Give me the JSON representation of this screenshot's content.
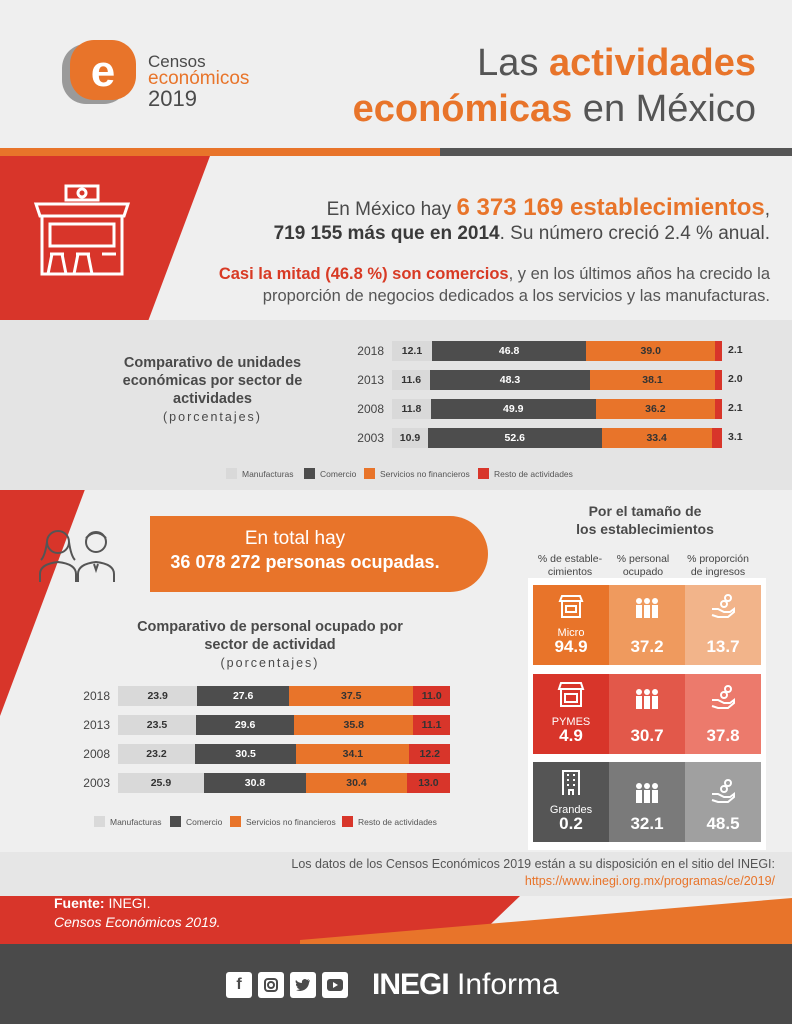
{
  "header": {
    "logo_line1": "Censos",
    "logo_line2": "económicos",
    "logo_line3": "2019",
    "title_pre": "Las ",
    "title_hl1": "actividades",
    "title_hl2": "económicas",
    "title_post": " en México"
  },
  "intro": {
    "p1_a": "En México hay ",
    "p1_big": "6 373 169 establecimientos",
    "p1_b": ",",
    "p1_bold": "719 155 más que en 2014",
    "p1_c": ". Su número creció 2.4 % anual.",
    "p2_hl": "Casi la mitad (46.8 %) son comercios",
    "p2_rest": ", y en los últimos años ha crecido la proporción de negocios dedicados a los servicios y las manufacturas."
  },
  "chart_data": [
    {
      "type": "bar",
      "title": "Comparativo de unidades económicas por sector de actividades",
      "subtitle": "(porcentajes)",
      "categories": [
        "2018",
        "2013",
        "2008",
        "2003"
      ],
      "series": [
        {
          "name": "Manufacturas",
          "color": "#d9d9d9",
          "values": [
            12.1,
            11.6,
            11.8,
            10.9
          ]
        },
        {
          "name": "Comercio",
          "color": "#4d4d4d",
          "values": [
            46.8,
            48.3,
            49.9,
            52.6
          ]
        },
        {
          "name": "Servicios no financieros",
          "color": "#e8742a",
          "values": [
            39.0,
            38.1,
            36.2,
            33.4
          ]
        },
        {
          "name": "Resto de actividades",
          "color": "#d8352a",
          "values": [
            2.1,
            2.0,
            2.1,
            3.1
          ]
        }
      ],
      "labels": [
        [
          "12.1",
          "46.8",
          "39.0",
          "2.1"
        ],
        [
          "11.6",
          "48.3",
          "38.1",
          "2.0"
        ],
        [
          "11.8",
          "49.9",
          "36.2",
          "2.1"
        ],
        [
          "10.9",
          "52.6",
          "33.4",
          "3.1"
        ]
      ]
    },
    {
      "type": "bar",
      "title": "Comparativo de personal ocupado por sector de actividad",
      "subtitle": "(porcentajes)",
      "categories": [
        "2018",
        "2013",
        "2008",
        "2003"
      ],
      "series": [
        {
          "name": "Manufacturas",
          "color": "#d9d9d9",
          "values": [
            23.9,
            23.5,
            23.2,
            25.9
          ]
        },
        {
          "name": "Comercio",
          "color": "#4d4d4d",
          "values": [
            27.6,
            29.6,
            30.5,
            30.8
          ]
        },
        {
          "name": "Servicios no financieros",
          "color": "#e8742a",
          "values": [
            37.5,
            35.8,
            34.1,
            30.4
          ]
        },
        {
          "name": "Resto de actividades",
          "color": "#d8352a",
          "values": [
            11.0,
            11.1,
            12.2,
            13.0
          ]
        }
      ],
      "labels": [
        [
          "23.9",
          "27.6",
          "37.5",
          "11.0"
        ],
        [
          "23.5",
          "29.6",
          "35.8",
          "11.1"
        ],
        [
          "23.2",
          "30.5",
          "34.1",
          "12.2"
        ],
        [
          "25.9",
          "30.8",
          "30.4",
          "13.0"
        ]
      ]
    }
  ],
  "people": {
    "line1": "En total hay",
    "line2": "36 078 272 personas ocupadas."
  },
  "size": {
    "title_line1": "Por el tamaño de",
    "title_line2": "los establecimientos",
    "col1": "% de estable-cimientos",
    "col2": "% personal ocupado",
    "col3": "% proporción de ingresos",
    "rows": [
      {
        "label": "Micro",
        "v1": "94.9",
        "v2": "37.2",
        "v3": "13.7"
      },
      {
        "label": "PYMES",
        "v1": "4.9",
        "v2": "30.7",
        "v3": "37.8"
      },
      {
        "label": "Grandes",
        "v1": "0.2",
        "v2": "32.1",
        "v3": "48.5"
      }
    ]
  },
  "footer": {
    "avail": "Los datos de los Censos Económicos 2019 están a su disposición en el sitio del INEGI:",
    "url": "https://www.inegi.org.mx/programas/ce/2019/",
    "source_label": "Fuente:",
    "source_org": " INEGI.",
    "source_pub": "Censos Económicos 2019.",
    "brand": "INEGI",
    "brand_suffix": " Informa"
  },
  "colors": {
    "orange": "#e8742a",
    "red": "#d8352a",
    "dark": "#4d4d4d",
    "light": "#d9d9d9"
  }
}
